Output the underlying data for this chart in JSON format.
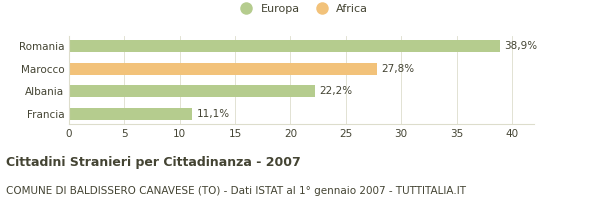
{
  "categories": [
    "Romania",
    "Marocco",
    "Albania",
    "Francia"
  ],
  "values": [
    38.9,
    27.8,
    22.2,
    11.1
  ],
  "labels": [
    "38,9%",
    "27,8%",
    "22,2%",
    "11,1%"
  ],
  "colors": [
    "#b5cc8e",
    "#f2c27a",
    "#b5cc8e",
    "#b5cc8e"
  ],
  "bar_height": 0.52,
  "xlim": [
    0,
    42
  ],
  "xticks": [
    0,
    5,
    10,
    15,
    20,
    25,
    30,
    35,
    40
  ],
  "legend_items": [
    {
      "label": "Europa",
      "color": "#b5cc8e"
    },
    {
      "label": "Africa",
      "color": "#f2c27a"
    }
  ],
  "title": "Cittadini Stranieri per Cittadinanza - 2007",
  "subtitle": "COMUNE DI BALDISSERO CANAVESE (TO) - Dati ISTAT al 1° gennaio 2007 - TUTTITALIA.IT",
  "background_color": "#ffffff",
  "grid_color": "#ddddcc",
  "text_color": "#444433",
  "label_fontsize": 7.5,
  "title_fontsize": 9,
  "subtitle_fontsize": 7.5,
  "ytick_fontsize": 7.5,
  "xtick_fontsize": 7.5
}
